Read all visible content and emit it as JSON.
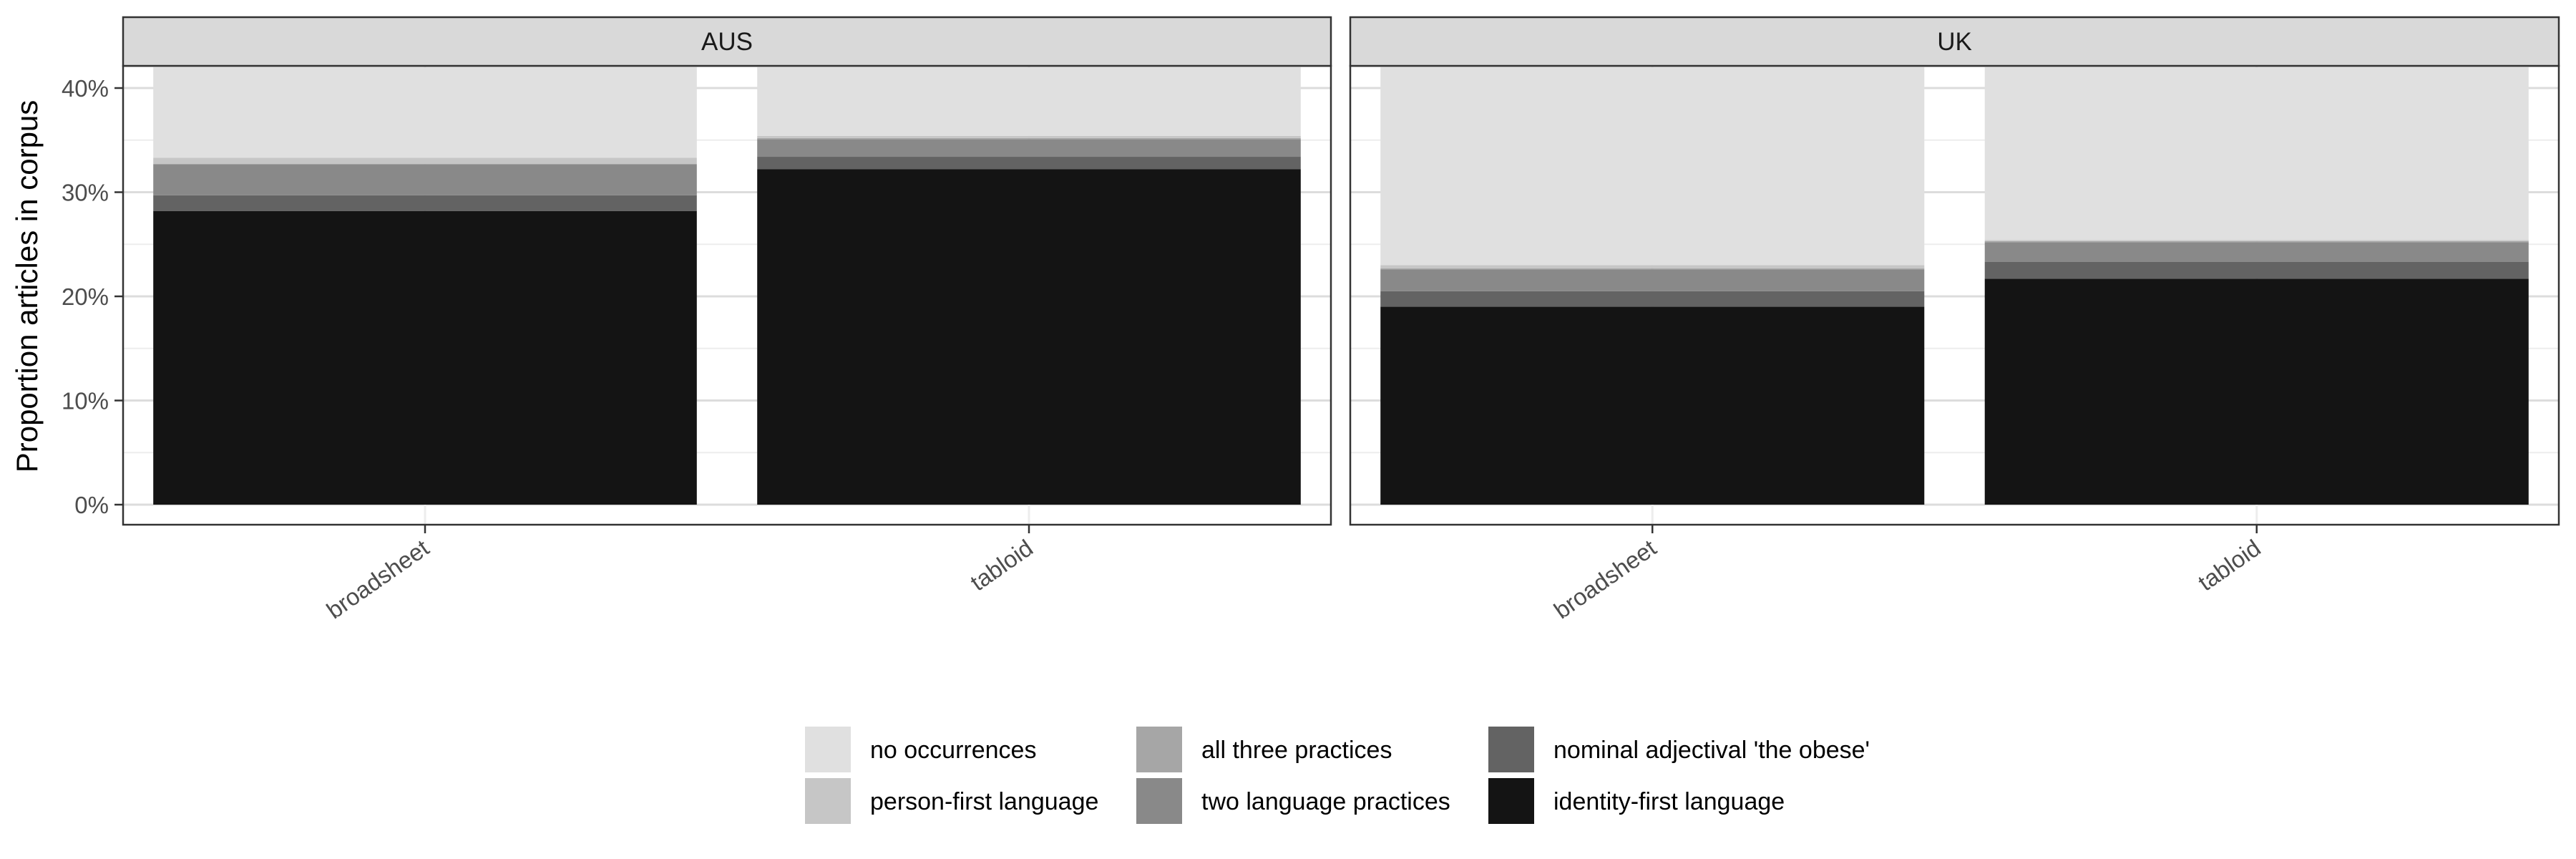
{
  "chart_data": {
    "type": "bar",
    "stacked": true,
    "ylabel": "Proportion articles in corpus",
    "yticks": [
      "0%",
      "10%",
      "20%",
      "30%",
      "40%"
    ],
    "ylim": [
      0,
      0.42
    ],
    "grid": true,
    "legend_position": "bottom",
    "categories": [
      "broadsheet",
      "tabloid"
    ],
    "panels": [
      {
        "label": "AUS",
        "series": [
          {
            "name": "identity-first language",
            "values": [
              0.282,
              0.322
            ]
          },
          {
            "name": "nominal adjectival 'the obese'",
            "values": [
              0.015,
              0.012
            ]
          },
          {
            "name": "two language practices",
            "values": [
              0.03,
              0.017
            ]
          },
          {
            "name": "all three practices",
            "values": [
              0.0,
              0.001
            ]
          },
          {
            "name": "person-first language",
            "values": [
              0.006,
              0.002
            ]
          },
          {
            "name": "no occurrences",
            "values": [
              0.087,
              0.066
            ]
          }
        ]
      },
      {
        "label": "UK",
        "series": [
          {
            "name": "identity-first language",
            "values": [
              0.19,
              0.217
            ]
          },
          {
            "name": "nominal adjectival 'the obese'",
            "values": [
              0.015,
              0.016
            ]
          },
          {
            "name": "two language practices",
            "values": [
              0.021,
              0.019
            ]
          },
          {
            "name": "all three practices",
            "values": [
              0.001,
              0.001
            ]
          },
          {
            "name": "person-first language",
            "values": [
              0.003,
              0.001
            ]
          },
          {
            "name": "no occurrences",
            "values": [
              0.19,
              0.166
            ]
          }
        ]
      }
    ],
    "legend": [
      {
        "name": "no occurrences",
        "color": "#e0e0e0"
      },
      {
        "name": "person-first language",
        "color": "#c6c6c6"
      },
      {
        "name": "all three practices",
        "color": "#a6a6a6"
      },
      {
        "name": "two language practices",
        "color": "#898989"
      },
      {
        "name": "nominal adjectival 'the obese'",
        "color": "#636363"
      },
      {
        "name": "identity-first language",
        "color": "#141414"
      }
    ]
  }
}
